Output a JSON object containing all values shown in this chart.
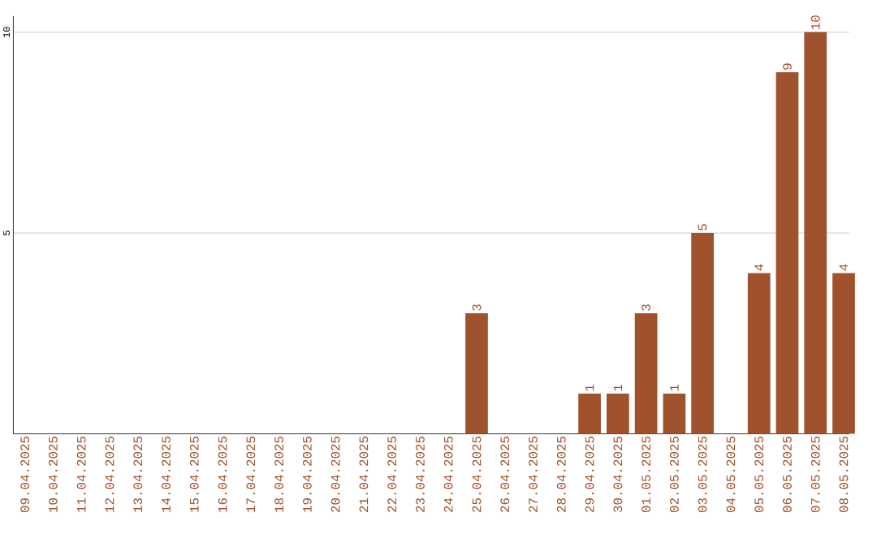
{
  "chart_data": {
    "type": "bar",
    "categories": [
      "09.04.2025",
      "10.04.2025",
      "11.04.2025",
      "12.04.2025",
      "13.04.2025",
      "14.04.2025",
      "15.04.2025",
      "16.04.2025",
      "17.04.2025",
      "18.04.2025",
      "19.04.2025",
      "20.04.2025",
      "21.04.2025",
      "22.04.2025",
      "23.04.2025",
      "24.04.2025",
      "25.04.2025",
      "26.04.2025",
      "27.04.2025",
      "28.04.2025",
      "29.04.2025",
      "30.04.2025",
      "01.05.2025",
      "02.05.2025",
      "03.05.2025",
      "04.05.2025",
      "05.05.2025",
      "06.05.2025",
      "07.05.2025",
      "08.05.2025"
    ],
    "values": [
      0,
      0,
      0,
      0,
      0,
      0,
      0,
      0,
      0,
      0,
      0,
      0,
      0,
      0,
      0,
      0,
      3,
      0,
      0,
      0,
      1,
      1,
      3,
      1,
      5,
      0,
      4,
      9,
      10,
      4
    ],
    "value_labels": [
      null,
      null,
      null,
      null,
      null,
      null,
      null,
      null,
      null,
      null,
      null,
      null,
      null,
      null,
      null,
      null,
      "3",
      null,
      null,
      null,
      "1",
      "1",
      "3",
      "1",
      "5",
      null,
      "4",
      "9",
      "10",
      "4"
    ],
    "color": "#a0522d",
    "ylim": [
      0,
      10.4
    ],
    "yticks": [
      5,
      10
    ],
    "grid": "y"
  }
}
